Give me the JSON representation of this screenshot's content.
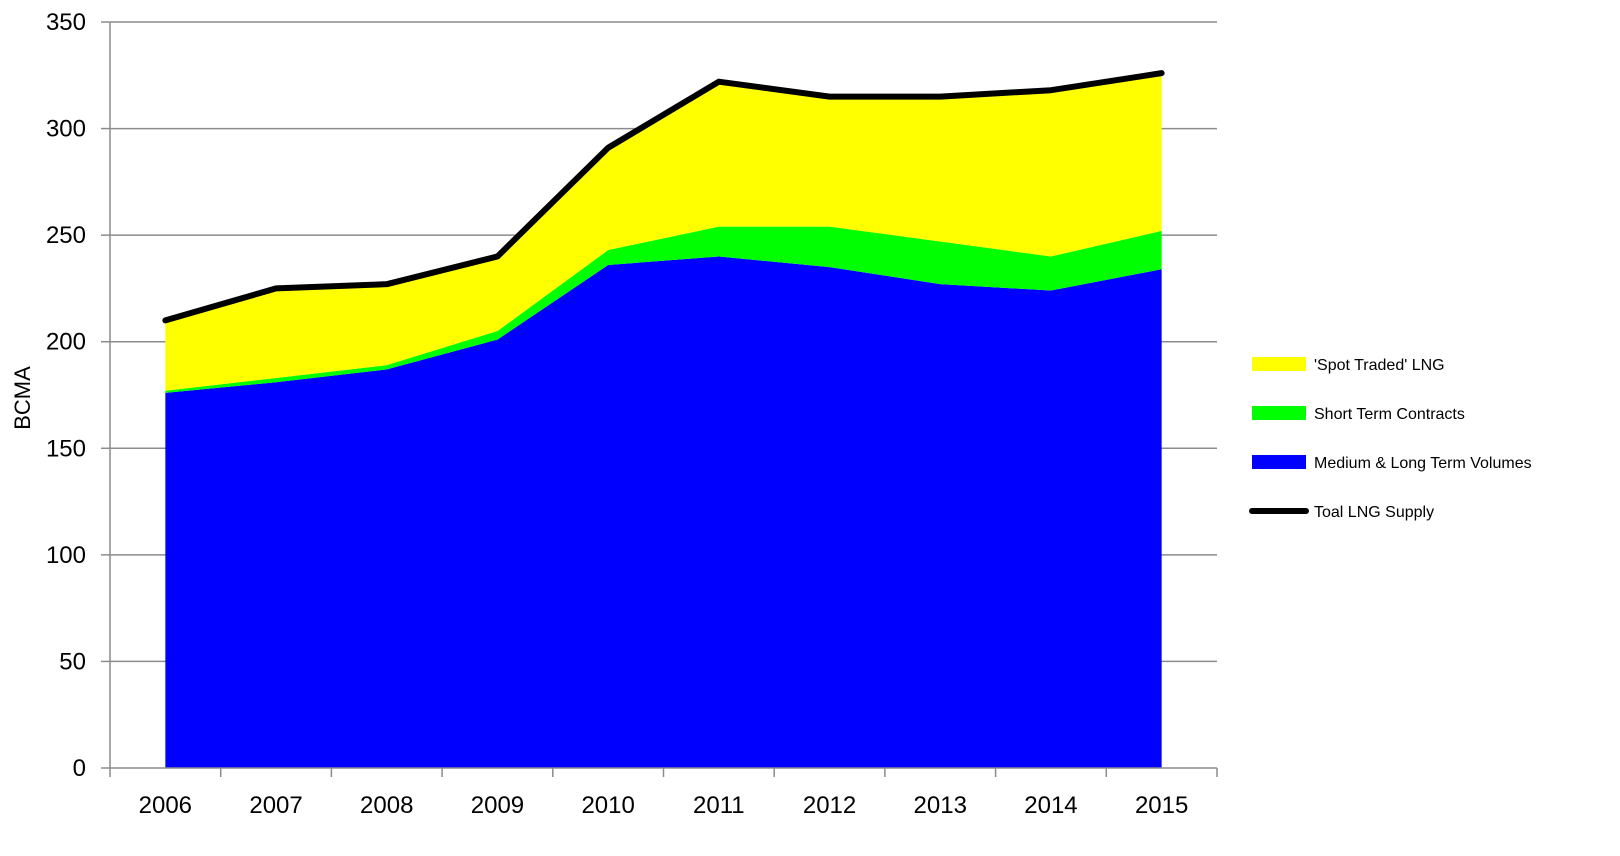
{
  "chart_data": {
    "type": "area",
    "title": "",
    "xlabel": "",
    "ylabel": "BCMA",
    "ylim": [
      0,
      350
    ],
    "yticks": [
      0,
      50,
      100,
      150,
      200,
      250,
      300,
      350
    ],
    "grid": true,
    "legend_position": "right",
    "categories": [
      "2006",
      "2007",
      "2008",
      "2009",
      "2010",
      "2011",
      "2012",
      "2013",
      "2014",
      "2015"
    ],
    "series": [
      {
        "name": "Medium & Long Term Volumes",
        "kind": "stacked-area",
        "color": "#0000ff",
        "values": [
          176,
          181,
          187,
          201,
          236,
          240,
          235,
          227,
          224,
          234
        ]
      },
      {
        "name": "Short Term Contracts",
        "kind": "stacked-area",
        "color": "#00ff00",
        "values": [
          1,
          2,
          2,
          4,
          7,
          14,
          19,
          20,
          16,
          18
        ]
      },
      {
        "name": "'Spot Traded' LNG",
        "kind": "stacked-area",
        "color": "#ffff00",
        "values": [
          33,
          42,
          38,
          35,
          48,
          68,
          61,
          68,
          78,
          74
        ]
      },
      {
        "name": "Toal LNG Supply",
        "kind": "line",
        "color": "#000000",
        "values": [
          210,
          225,
          227,
          240,
          291,
          322,
          315,
          315,
          318,
          326
        ]
      }
    ],
    "legend_order": [
      "'Spot Traded' LNG",
      "Short Term Contracts",
      "Medium & Long Term Volumes",
      "Toal LNG Supply"
    ]
  }
}
